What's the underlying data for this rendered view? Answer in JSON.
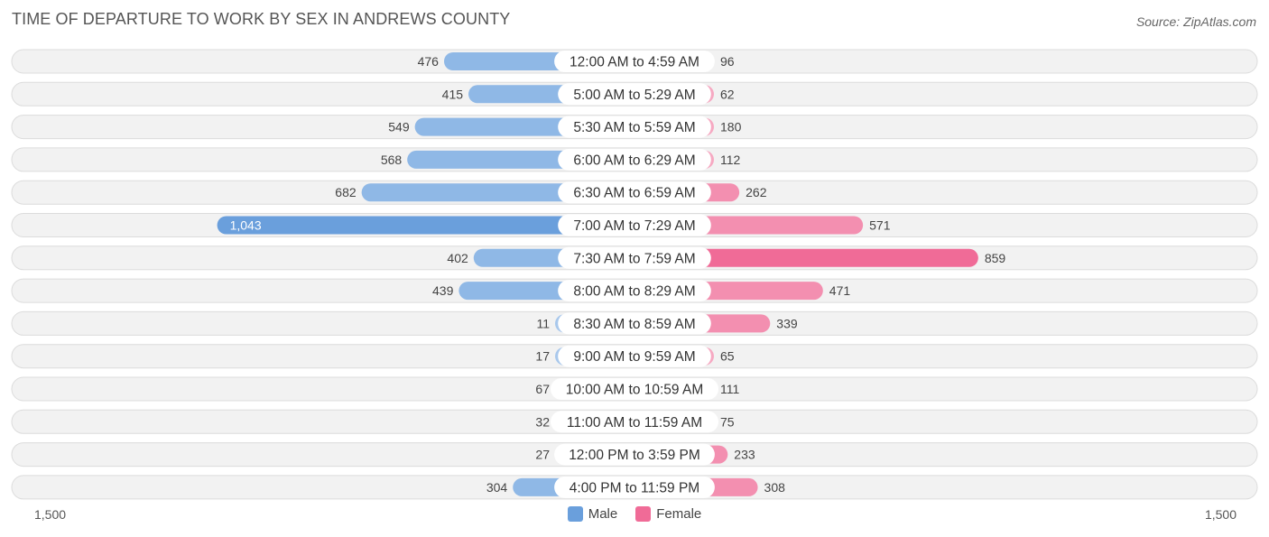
{
  "header": {
    "title": "TIME OF DEPARTURE TO WORK BY SEX IN ANDREWS COUNTY",
    "source": "Source: ZipAtlas.com"
  },
  "colors": {
    "male": "#6a9fdc",
    "male_light": "#a9c8ec",
    "female": "#f06b97",
    "female_light": "#f6a9c2",
    "row_bg": "#f2f2f2",
    "row_border": "#dcdcdc"
  },
  "legend": {
    "male_label": "Male",
    "female_label": "Female"
  },
  "axis": {
    "left_label": "1,500",
    "right_label": "1,500"
  },
  "chart_data": {
    "type": "bar",
    "orientation": "horizontal-diverging",
    "title": "TIME OF DEPARTURE TO WORK BY SEX IN ANDREWS COUNTY",
    "categories": [
      "12:00 AM to 4:59 AM",
      "5:00 AM to 5:29 AM",
      "5:30 AM to 5:59 AM",
      "6:00 AM to 6:29 AM",
      "6:30 AM to 6:59 AM",
      "7:00 AM to 7:29 AM",
      "7:30 AM to 7:59 AM",
      "8:00 AM to 8:29 AM",
      "8:30 AM to 8:59 AM",
      "9:00 AM to 9:59 AM",
      "10:00 AM to 10:59 AM",
      "11:00 AM to 11:59 AM",
      "12:00 PM to 3:59 PM",
      "4:00 PM to 11:59 PM"
    ],
    "series": [
      {
        "name": "Male",
        "values": [
          476,
          415,
          549,
          568,
          682,
          1043,
          402,
          439,
          11,
          17,
          67,
          32,
          27,
          304
        ],
        "labels": [
          "476",
          "415",
          "549",
          "568",
          "682",
          "1,043",
          "402",
          "439",
          "11",
          "17",
          "67",
          "32",
          "27",
          "304"
        ]
      },
      {
        "name": "Female",
        "values": [
          96,
          62,
          180,
          112,
          262,
          571,
          859,
          471,
          339,
          65,
          111,
          75,
          233,
          308
        ],
        "labels": [
          "96",
          "62",
          "180",
          "112",
          "262",
          "571",
          "859",
          "471",
          "339",
          "65",
          "111",
          "75",
          "233",
          "308"
        ]
      }
    ],
    "xlim": [
      -1500,
      1500
    ],
    "xlabel": "",
    "ylabel": "",
    "legend_position": "bottom-center"
  }
}
